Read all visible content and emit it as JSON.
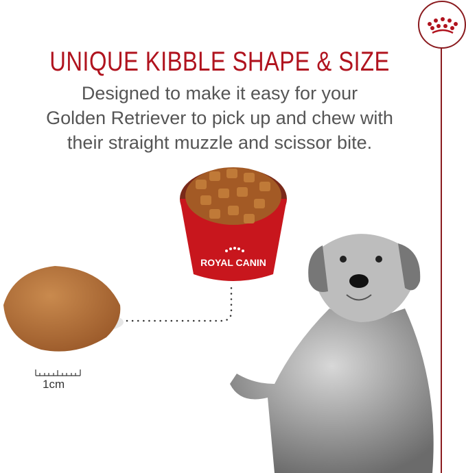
{
  "headline": "UNIQUE KIBBLE SHAPE & SIZE",
  "description_lines": [
    "Designed to make it easy for your",
    "Golden Retriever to pick up and chew with",
    "their straight muzzle and scissor bite."
  ],
  "bowl_brand": "ROYAL CANIN",
  "scale_label": "1cm",
  "colors": {
    "brand_red": "#b0131e",
    "logo_dark_red": "#8a1a1e",
    "kibble": "#b5733c"
  }
}
